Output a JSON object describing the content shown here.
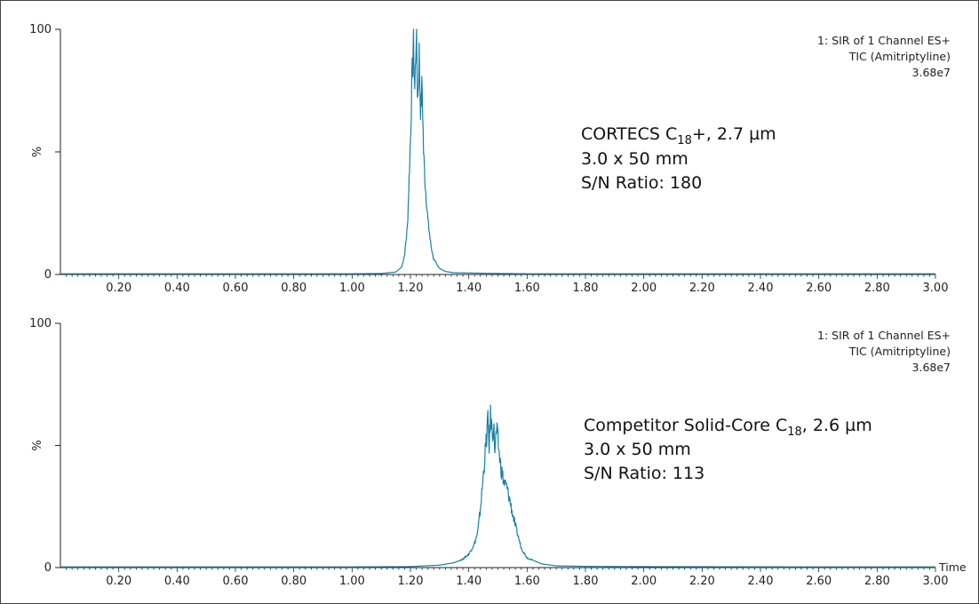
{
  "chart_data": [
    {
      "type": "line",
      "title": "",
      "xlabel": "",
      "ylabel": "%",
      "xlim": [
        0,
        3.0
      ],
      "ylim": [
        0,
        100
      ],
      "x_ticks": [
        "0.20",
        "0.40",
        "0.60",
        "0.80",
        "1.00",
        "1.20",
        "1.40",
        "1.60",
        "1.80",
        "2.00",
        "2.20",
        "2.40",
        "2.60",
        "2.80",
        "3.00"
      ],
      "y_ticks": [
        "0",
        "100"
      ],
      "grid": false,
      "header_lines": [
        "1: SIR of 1 Channel ES+",
        "TIC (Amitriptyline)",
        "3.68e7"
      ],
      "annotation": {
        "line1_prefix": "CORTECS C",
        "line1_sub": "18",
        "line1_suffix": "+, 2.7 µm",
        "line2": "3.0 x 50 mm",
        "line3": "S/N Ratio: 180"
      },
      "series": [
        {
          "color": "#1a7fa3",
          "x": [
            0.0,
            0.5,
            1.0,
            1.1,
            1.15,
            1.17,
            1.18,
            1.19,
            1.2,
            1.205,
            1.21,
            1.215,
            1.22,
            1.225,
            1.23,
            1.235,
            1.24,
            1.245,
            1.25,
            1.26,
            1.27,
            1.28,
            1.3,
            1.32,
            1.35,
            1.4,
            1.5,
            1.6,
            1.8,
            2.0,
            2.5,
            3.0
          ],
          "y": [
            0.3,
            0.3,
            0.3,
            0.4,
            1.0,
            3.0,
            8.0,
            20.0,
            55.0,
            78.0,
            95.0,
            75.0,
            100.0,
            70.0,
            90.0,
            66.0,
            78.0,
            50.0,
            38.0,
            22.0,
            12.0,
            6.0,
            2.5,
            1.2,
            0.7,
            0.6,
            0.4,
            0.3,
            0.3,
            0.3,
            0.3,
            0.3
          ]
        }
      ]
    },
    {
      "type": "line",
      "title": "",
      "xlabel": "Time",
      "ylabel": "%",
      "xlim": [
        0,
        3.0
      ],
      "ylim": [
        0,
        100
      ],
      "x_ticks": [
        "0.20",
        "0.40",
        "0.60",
        "0.80",
        "1.00",
        "1.20",
        "1.40",
        "1.60",
        "1.80",
        "2.00",
        "2.20",
        "2.40",
        "2.60",
        "2.80",
        "3.00"
      ],
      "y_ticks": [
        "0",
        "100"
      ],
      "grid": false,
      "header_lines": [
        "1: SIR of 1 Channel ES+",
        "TIC (Amitriptyline)",
        "3.68e7"
      ],
      "annotation": {
        "line1_prefix": "Competitor Solid-Core C",
        "line1_sub": "18",
        "line1_suffix": ", 2.6 µm",
        "line2": "3.0 x 50 mm",
        "line3": "S/N Ratio: 113"
      },
      "series": [
        {
          "color": "#1a7fa3",
          "x": [
            0.0,
            0.5,
            1.0,
            1.2,
            1.3,
            1.35,
            1.38,
            1.4,
            1.42,
            1.43,
            1.44,
            1.45,
            1.455,
            1.46,
            1.465,
            1.47,
            1.475,
            1.48,
            1.485,
            1.49,
            1.495,
            1.5,
            1.505,
            1.51,
            1.52,
            1.53,
            1.54,
            1.55,
            1.56,
            1.58,
            1.6,
            1.65,
            1.7,
            1.8,
            2.0,
            2.5,
            3.0
          ],
          "y": [
            0.3,
            0.3,
            0.3,
            0.4,
            1.0,
            2.0,
            3.5,
            5.5,
            10.0,
            14.0,
            24.0,
            38.0,
            45.0,
            52.0,
            60.0,
            50.0,
            63.0,
            55.0,
            58.0,
            48.0,
            56.0,
            52.0,
            46.0,
            41.0,
            35.0,
            33.0,
            28.0,
            22.0,
            17.0,
            8.0,
            4.0,
            1.5,
            0.7,
            0.5,
            0.4,
            0.3,
            0.3
          ]
        }
      ]
    }
  ]
}
